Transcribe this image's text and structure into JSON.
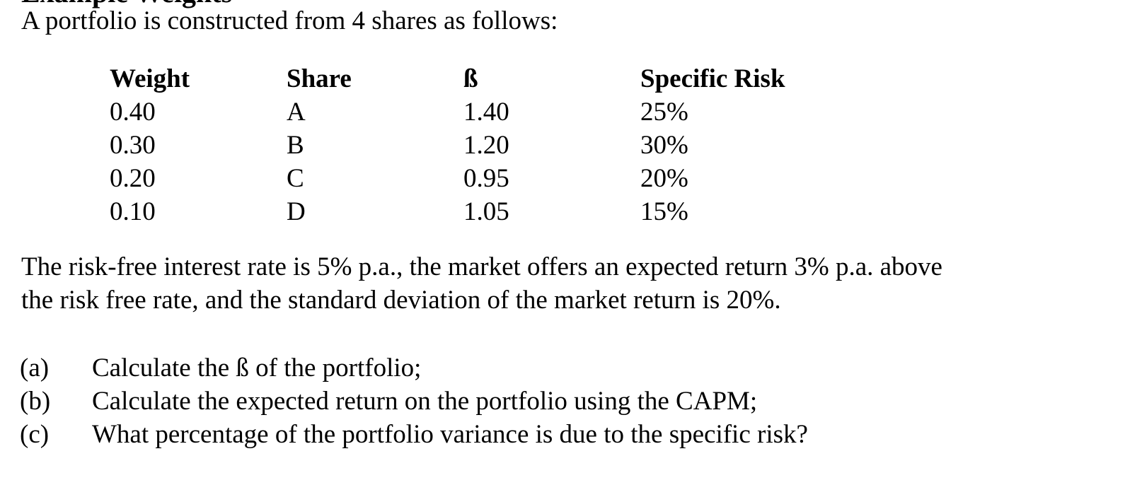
{
  "heading_clipped": "Example Weights",
  "intro": "A portfolio is constructed from 4 shares as follows:",
  "table": {
    "headers": [
      "Weight",
      "Share",
      "ß",
      "Specific Risk"
    ],
    "rows": [
      [
        "0.40",
        "A",
        "1.40",
        "25%"
      ],
      [
        "0.30",
        "B",
        "1.20",
        "30%"
      ],
      [
        "0.20",
        "C",
        "0.95",
        "20%"
      ],
      [
        "0.10",
        "D",
        "1.05",
        "15%"
      ]
    ]
  },
  "paragraph": {
    "line1": "The risk-free interest rate is 5% p.a., the market offers an expected return 3% p.a. above",
    "line2": "the risk free rate, and the standard deviation of the market return is 20%."
  },
  "questions": [
    {
      "label": "(a)",
      "text": "Calculate the ß of the portfolio;"
    },
    {
      "label": "(b)",
      "text": "Calculate the expected return on the portfolio using the CAPM;"
    },
    {
      "label": "(c)",
      "text": "What percentage of the portfolio variance is due to the specific risk?"
    }
  ]
}
